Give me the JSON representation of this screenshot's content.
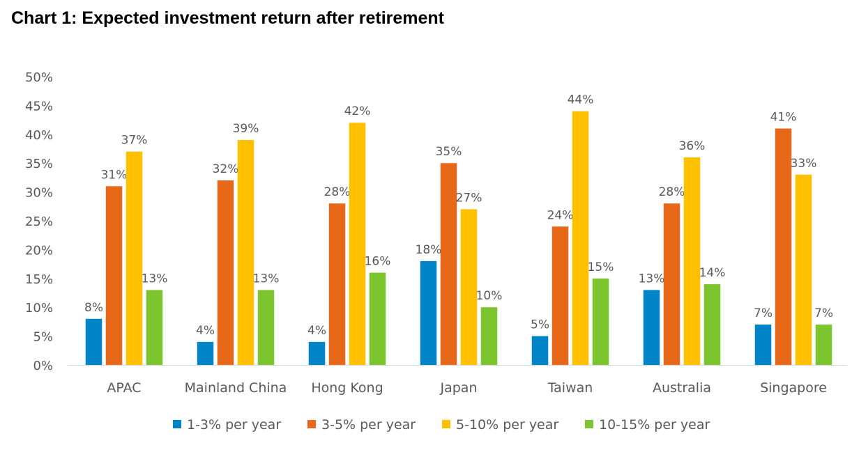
{
  "chart_data": {
    "type": "bar",
    "title": "Chart 1: Expected investment return after retirement",
    "xlabel": "",
    "ylabel": "",
    "ylim": [
      0,
      50
    ],
    "yticks": [
      "0%",
      "5%",
      "10%",
      "15%",
      "20%",
      "25%",
      "30%",
      "35%",
      "40%",
      "45%",
      "50%"
    ],
    "grid": false,
    "legend_position": "bottom",
    "categories": [
      "APAC",
      "Mainland China",
      "Hong Kong",
      "Japan",
      "Taiwan",
      "Australia",
      "Singapore"
    ],
    "series": [
      {
        "name": "1-3% per year",
        "color": "#0084C8",
        "values": [
          8,
          4,
          4,
          18,
          5,
          13,
          7
        ]
      },
      {
        "name": "3-5% per year",
        "color": "#E8681A",
        "values": [
          31,
          32,
          28,
          35,
          24,
          28,
          41
        ]
      },
      {
        "name": "5-10% per year",
        "color": "#FFC000",
        "values": [
          37,
          39,
          42,
          27,
          44,
          36,
          33
        ]
      },
      {
        "name": "10-15% per year",
        "color": "#7DC52E",
        "values": [
          13,
          13,
          16,
          10,
          15,
          14,
          7
        ]
      }
    ]
  }
}
